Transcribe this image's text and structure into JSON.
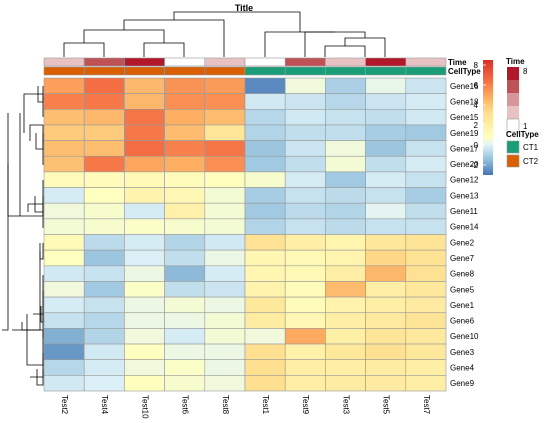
{
  "chart_data": {
    "type": "heatmap",
    "title": "Title",
    "columns": [
      "Test2",
      "Test4",
      "Test10",
      "Test6",
      "Test8",
      "Test1",
      "Test9",
      "Test3",
      "Test5",
      "Test7"
    ],
    "rows": [
      "Gene16",
      "Gene18",
      "Gene15",
      "Gene19",
      "Gene17",
      "Gene20",
      "Gene12",
      "Gene13",
      "Gene11",
      "Gene14",
      "Gene2",
      "Gene7",
      "Gene8",
      "Gene5",
      "Gene1",
      "Gene6",
      "Gene10",
      "Gene3",
      "Gene4",
      "Gene9"
    ],
    "values": [
      [
        5.2,
        6.5,
        4.5,
        5.5,
        5.3,
        -2.6,
        0.4,
        -1.0,
        0.2,
        -0.4
      ],
      [
        6.0,
        6.2,
        4.5,
        5.6,
        5.6,
        -0.3,
        -0.4,
        -0.8,
        -0.4,
        -0.2
      ],
      [
        4.3,
        4.5,
        6.3,
        4.8,
        4.4,
        -0.8,
        -0.3,
        -0.5,
        -0.6,
        -0.3
      ],
      [
        3.9,
        3.9,
        6.2,
        4.4,
        2.8,
        -0.9,
        -0.6,
        -0.6,
        -1.1,
        -1.2
      ],
      [
        4.3,
        4.3,
        6.5,
        6.0,
        6.3,
        -1.3,
        -0.4,
        0.4,
        -1.3,
        -0.5
      ],
      [
        4.2,
        6.2,
        5.0,
        4.8,
        5.6,
        -1.2,
        -0.6,
        0.5,
        -0.6,
        -0.2
      ],
      [
        1.0,
        1.0,
        1.3,
        1.0,
        0.9,
        0.6,
        -0.2,
        -1.2,
        -0.2,
        -0.5
      ],
      [
        -0.2,
        0.8,
        1.7,
        1.4,
        0.5,
        -1.1,
        -0.5,
        -0.7,
        -0.5,
        -1.1
      ],
      [
        0.4,
        0.6,
        -0.2,
        1.9,
        0.5,
        -1.2,
        -0.7,
        -0.9,
        0.1,
        -0.6
      ],
      [
        0.5,
        0.6,
        0.7,
        0.6,
        0.5,
        -0.9,
        -0.5,
        -0.7,
        -0.5,
        -0.5
      ],
      [
        1.2,
        -0.7,
        -0.2,
        -0.9,
        -0.3,
        3.1,
        2.1,
        1.6,
        2.7,
        2.9
      ],
      [
        0.8,
        -1.3,
        -0.1,
        -0.6,
        0.3,
        1.5,
        1.3,
        1.6,
        3.5,
        3.0
      ],
      [
        -0.3,
        -0.5,
        0.3,
        -1.6,
        -0.2,
        1.5,
        1.3,
        2.2,
        4.5,
        3.1
      ],
      [
        0.4,
        -1.2,
        0.7,
        -0.6,
        -0.4,
        1.7,
        1.0,
        4.4,
        2.1,
        2.6
      ],
      [
        -0.2,
        -0.5,
        0.3,
        0.5,
        0.3,
        2.6,
        1.0,
        1.7,
        2.1,
        2.4
      ],
      [
        -0.5,
        -0.8,
        0.3,
        0.3,
        0.5,
        2.3,
        1.4,
        2.1,
        2.5,
        2.9
      ],
      [
        -1.8,
        -0.9,
        0.4,
        -0.2,
        0.5,
        0.4,
        4.9,
        2.0,
        2.8,
        2.5
      ],
      [
        -2.3,
        -0.3,
        0.8,
        0.3,
        0.3,
        3.2,
        1.9,
        2.6,
        3.1,
        2.6
      ],
      [
        -0.8,
        -0.2,
        0.4,
        0.7,
        0.3,
        3.2,
        2.1,
        2.1,
        2.3,
        2.1
      ],
      [
        -0.3,
        -0.1,
        0.9,
        0.6,
        0.4,
        3.2,
        2.1,
        2.3,
        2.4,
        2.1
      ]
    ],
    "annotations": {
      "Time": {
        "label": "Time",
        "values": [
          2,
          7,
          8,
          1,
          3,
          1,
          6,
          3,
          8,
          2
        ],
        "legend_ticks": [
          "8",
          "1"
        ],
        "colors": [
          "#ffffff",
          "#e8c2c3",
          "#d7969a",
          "#bf5257",
          "#b2182b"
        ]
      },
      "CellType": {
        "label": "CellType",
        "values": [
          "CT2",
          "CT2",
          "CT2",
          "CT2",
          "CT2",
          "CT1",
          "CT1",
          "CT1",
          "CT1",
          "CT1"
        ],
        "colors": {
          "CT1": "#1b9e77",
          "CT2": "#d95f02"
        }
      }
    },
    "color_scale": {
      "ticks": [
        8,
        6,
        4,
        2,
        0,
        -2
      ],
      "range": [
        -3,
        8.5
      ],
      "stops": [
        {
          "v": -3,
          "c": "#4575b4"
        },
        {
          "v": -1.5,
          "c": "#91bfdb"
        },
        {
          "v": 0,
          "c": "#e0f3f8"
        },
        {
          "v": 0.8,
          "c": "#ffffbf"
        },
        {
          "v": 3.2,
          "c": "#fee090"
        },
        {
          "v": 4.8,
          "c": "#fdae61"
        },
        {
          "v": 6.5,
          "c": "#f46d43"
        },
        {
          "v": 8.5,
          "c": "#d73027"
        }
      ]
    },
    "cell_border_color": "#999999"
  }
}
